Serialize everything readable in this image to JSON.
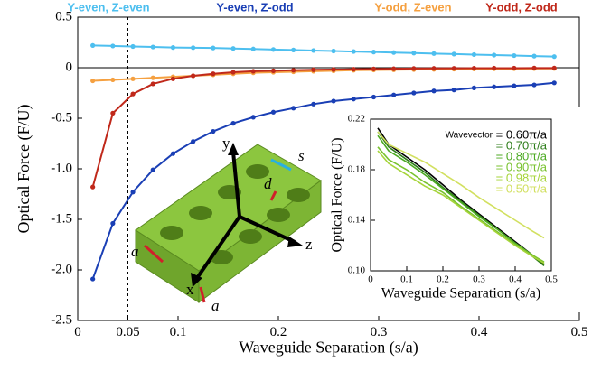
{
  "chart_data": [
    {
      "type": "line",
      "markers": true,
      "legend": "top",
      "xlabel": "Waveguide Separation (s/a)",
      "ylabel": "Optical Force (F/U)",
      "x": [
        0.015,
        0.035,
        0.055,
        0.075,
        0.095,
        0.115,
        0.135,
        0.155,
        0.175,
        0.195,
        0.215,
        0.235,
        0.255,
        0.275,
        0.295,
        0.315,
        0.335,
        0.355,
        0.375,
        0.395,
        0.415,
        0.435,
        0.455,
        0.475
      ],
      "xlim": [
        0,
        0.5
      ],
      "xticks": [
        0,
        0.05,
        0.1,
        0.2,
        0.3,
        0.4,
        0.5
      ],
      "ylim": [
        -2.5,
        0.5
      ],
      "yticks": [
        -2.5,
        {
          "value": -2,
          "label": "-2.0"
        },
        -1.5,
        {
          "value": -1,
          "label": "-1.0"
        },
        -0.5,
        0,
        0.5
      ],
      "hline": 0,
      "vline": 0.05,
      "series": [
        {
          "name": "Y-even, Z-even",
          "color": "#4dbfef",
          "values": [
            0.22,
            0.215,
            0.21,
            0.205,
            0.2,
            0.198,
            0.195,
            0.19,
            0.185,
            0.18,
            0.175,
            0.17,
            0.165,
            0.16,
            0.155,
            0.15,
            0.145,
            0.14,
            0.135,
            0.13,
            0.125,
            0.12,
            0.115,
            0.11
          ]
        },
        {
          "name": "Y-even, Z-odd",
          "color": "#1a3fb5",
          "values": [
            -2.09,
            -1.54,
            -1.23,
            -1.01,
            -0.85,
            -0.73,
            -0.63,
            -0.55,
            -0.49,
            -0.44,
            -0.4,
            -0.36,
            -0.33,
            -0.31,
            -0.29,
            -0.27,
            -0.25,
            -0.23,
            -0.22,
            -0.2,
            -0.19,
            -0.18,
            -0.17,
            -0.15
          ]
        },
        {
          "name": "Y-odd, Z-even",
          "color": "#f5a040",
          "values": [
            -0.13,
            -0.12,
            -0.11,
            -0.1,
            -0.09,
            -0.08,
            -0.07,
            -0.06,
            -0.05,
            -0.045,
            -0.04,
            -0.035,
            -0.03,
            -0.025,
            -0.022,
            -0.02,
            -0.018,
            -0.016,
            -0.014,
            -0.012,
            -0.01,
            -0.009,
            -0.008,
            -0.007
          ]
        },
        {
          "name": "Y-odd, Z-odd",
          "color": "#c0281a",
          "values": [
            -1.18,
            -0.45,
            -0.26,
            -0.16,
            -0.11,
            -0.08,
            -0.06,
            -0.045,
            -0.035,
            -0.03,
            -0.025,
            -0.02,
            -0.018,
            -0.015,
            -0.012,
            -0.01,
            -0.008,
            -0.007,
            -0.006,
            -0.005,
            -0.004,
            -0.004,
            -0.003,
            -0.003
          ]
        }
      ]
    },
    {
      "type": "line",
      "markers": false,
      "legend": "upper right",
      "legend_title": "Wavevector",
      "xlabel": "Waveguide Separation (s/a)",
      "ylabel": "Optical Force (F/U)",
      "x": [
        0.02,
        0.05,
        0.1,
        0.15,
        0.2,
        0.25,
        0.3,
        0.35,
        0.4,
        0.45,
        0.48
      ],
      "xlim": [
        0,
        0.5
      ],
      "xticks": [
        0,
        0.1,
        0.2,
        0.3,
        0.4,
        0.5
      ],
      "ylim": [
        0.1,
        0.22
      ],
      "yticks": [
        {
          "value": 0.1,
          "label": "0.10"
        },
        0.14,
        0.18,
        0.22
      ],
      "series": [
        {
          "name": "= 0.60π/a",
          "color": "#000000",
          "values": [
            0.213,
            0.2,
            0.19,
            0.18,
            0.168,
            0.156,
            0.145,
            0.134,
            0.123,
            0.112,
            0.105
          ]
        },
        {
          "name": "= 0.70π/a",
          "color": "#2e7d1a",
          "values": [
            0.21,
            0.198,
            0.188,
            0.178,
            0.166,
            0.155,
            0.144,
            0.133,
            0.122,
            0.111,
            0.104
          ]
        },
        {
          "name": "= 0.80π/a",
          "color": "#4caa22",
          "values": [
            0.207,
            0.195,
            0.186,
            0.176,
            0.165,
            0.154,
            0.143,
            0.133,
            0.122,
            0.112,
            0.106
          ]
        },
        {
          "name": "= 0.90π/a",
          "color": "#78c22e",
          "values": [
            0.198,
            0.188,
            0.18,
            0.17,
            0.162,
            0.151,
            0.141,
            0.131,
            0.121,
            0.112,
            0.107
          ]
        },
        {
          "name": "= 0.98π/a",
          "color": "#a6d43a",
          "values": [
            0.195,
            0.185,
            0.176,
            0.167,
            0.16,
            0.15,
            0.14,
            0.13,
            0.12,
            0.111,
            0.106
          ]
        },
        {
          "name": "= 0.50π/a",
          "color": "#d2e060",
          "values": [
            0.21,
            0.2,
            0.193,
            0.186,
            0.177,
            0.168,
            0.158,
            0.149,
            0.14,
            0.131,
            0.126
          ]
        }
      ]
    }
  ],
  "illustration": {
    "labels": [
      "a",
      "a",
      "s",
      "d",
      "x",
      "y",
      "z"
    ]
  }
}
